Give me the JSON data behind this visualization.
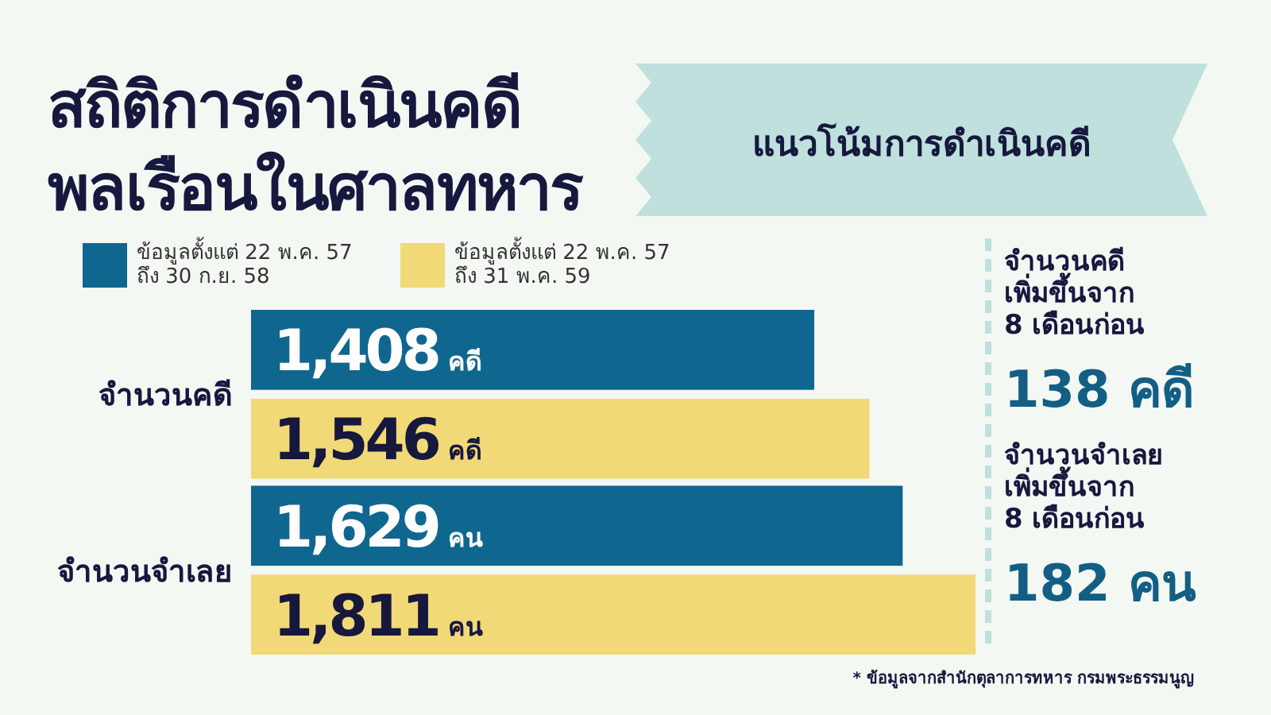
{
  "chart_data": {
    "type": "bar",
    "orientation": "horizontal",
    "title": "สถิติการดำเนินคดี\nพลเรือนในศาลทหาร",
    "subtitle": "แนวโน้มการดำเนินคดี",
    "categories": [
      "จำนวนคดี",
      "จำนวนจำเลย"
    ],
    "series": [
      {
        "name": "ข้อมูลตั้งแต่ 22 พ.ค. 57\nถึง 30 ก.ย. 58",
        "color": "#0f6790",
        "values": [
          1408,
          1629
        ],
        "value_labels": [
          "1,408 คดี",
          "1,629 คน"
        ]
      },
      {
        "name": "ข้อมูลตั้งแต่ 22 พ.ค. 57\nถึง 31 พ.ค. 59",
        "color": "#f1d978",
        "values": [
          1546,
          1811
        ],
        "value_labels": [
          "1,546 คดี",
          "1,811 คน"
        ]
      }
    ],
    "legend": "top left",
    "annotations": [
      "จำนวนคดี\nเพิ่มขึ้นจาก\n8 เดือนก่อน\n138 คดี",
      "จำนวนจำเลย\nเพิ่มขึ้นจาก\n8 เดือนก่อน\n182 คน",
      "* ข้อมูลจากสำนักตุลาการทหาร กรมพระธรรมนูญ"
    ]
  }
}
